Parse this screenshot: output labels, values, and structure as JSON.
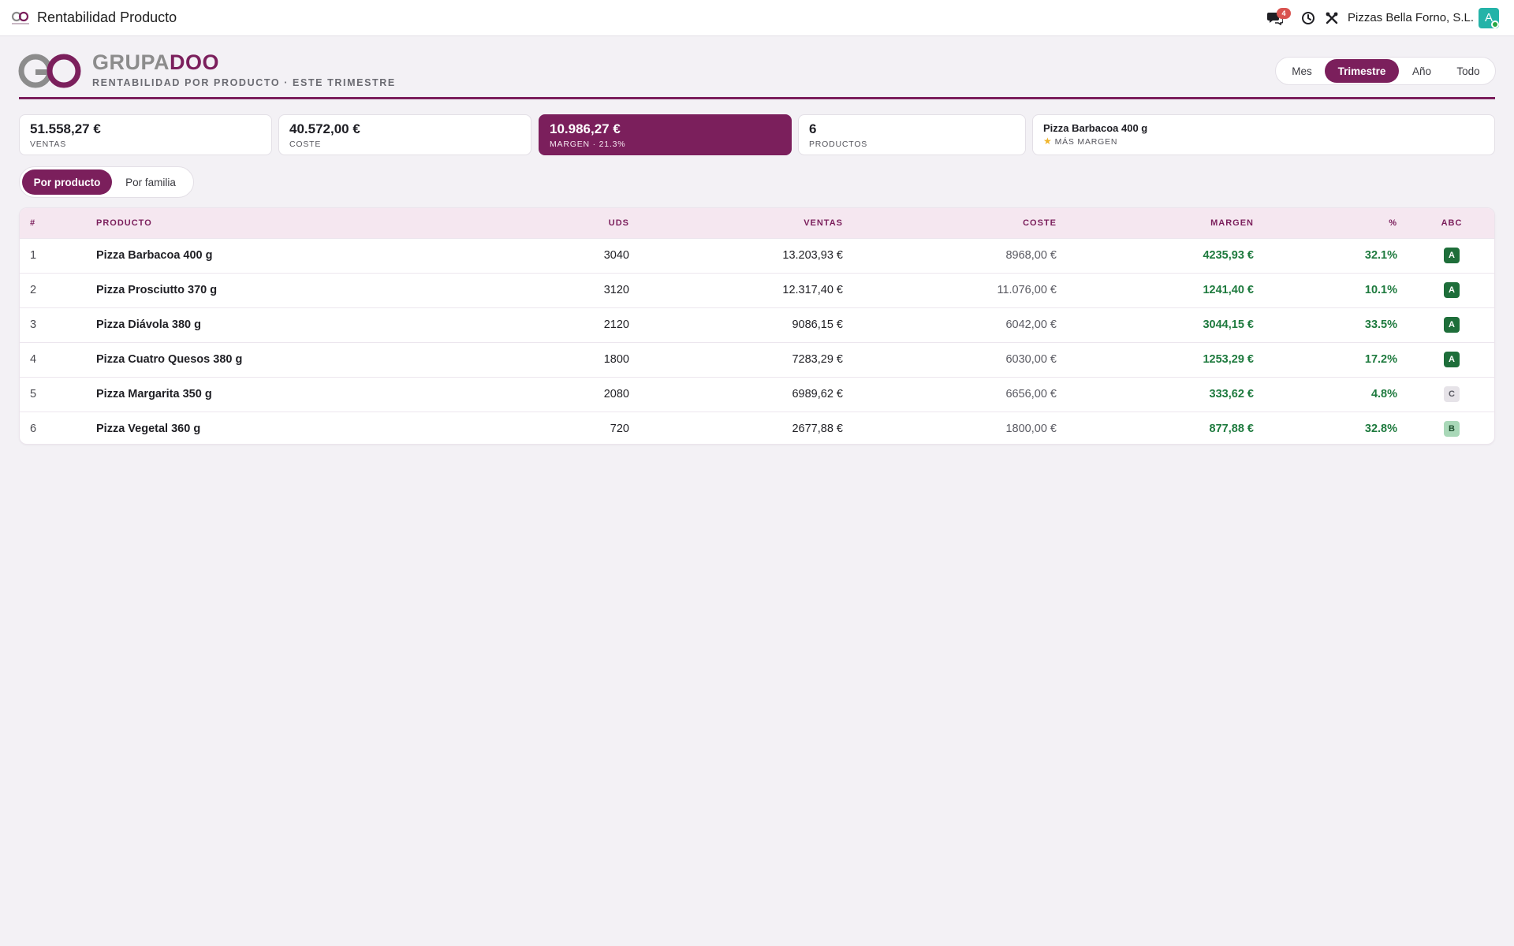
{
  "app": {
    "title": "Rentabilidad Producto",
    "company": "Pizzas Bella Forno, S.L.",
    "notifications_count": "4",
    "avatar_letter": "A"
  },
  "brand": {
    "name_part1": "GRUPA",
    "name_part2": "DOO",
    "subtitle": "RENTABILIDAD POR PRODUCTO · ESTE TRIMESTRE"
  },
  "period_filter": {
    "options": [
      "Mes",
      "Trimestre",
      "Año",
      "Todo"
    ],
    "selected": "Trimestre"
  },
  "kpis": {
    "sales": {
      "value": "51.558,27 €",
      "label": "VENTAS"
    },
    "cost": {
      "value": "40.572,00 €",
      "label": "COSTE"
    },
    "margin": {
      "value": "10.986,27 €",
      "label": "MARGEN · 21.3%"
    },
    "products": {
      "value": "6",
      "label": "PRODUCTOS"
    },
    "top_product": {
      "value": "Pizza Barbacoa 400 g",
      "label": "MÁS MARGEN",
      "icon": "star-icon"
    }
  },
  "view_toggle": {
    "options": [
      "Por producto",
      "Por familia"
    ],
    "selected": "Por producto"
  },
  "table": {
    "headers": {
      "idx": "#",
      "product": "PRODUCTO",
      "units": "UDS",
      "sales": "VENTAS",
      "cost": "COSTE",
      "margin": "MARGEN",
      "pct": "%",
      "abc": "ABC"
    },
    "rows": [
      {
        "idx": "1",
        "product": "Pizza Barbacoa 400 g",
        "units": "3040",
        "sales": "13.203,93 €",
        "cost": "8968,00 €",
        "margin": "4235,93 €",
        "pct": "32.1%",
        "abc": "A"
      },
      {
        "idx": "2",
        "product": "Pizza Prosciutto 370 g",
        "units": "3120",
        "sales": "12.317,40 €",
        "cost": "11.076,00 €",
        "margin": "1241,40 €",
        "pct": "10.1%",
        "abc": "A"
      },
      {
        "idx": "3",
        "product": "Pizza Diávola 380 g",
        "units": "2120",
        "sales": "9086,15 €",
        "cost": "6042,00 €",
        "margin": "3044,15 €",
        "pct": "33.5%",
        "abc": "A"
      },
      {
        "idx": "4",
        "product": "Pizza Cuatro Quesos 380 g",
        "units": "1800",
        "sales": "7283,29 €",
        "cost": "6030,00 €",
        "margin": "1253,29 €",
        "pct": "17.2%",
        "abc": "A"
      },
      {
        "idx": "5",
        "product": "Pizza Margarita 350 g",
        "units": "2080",
        "sales": "6989,62 €",
        "cost": "6656,00 €",
        "margin": "333,62 €",
        "pct": "4.8%",
        "abc": "C"
      },
      {
        "idx": "6",
        "product": "Pizza Vegetal 360 g",
        "units": "720",
        "sales": "2677,88 €",
        "cost": "1800,00 €",
        "margin": "877,88 €",
        "pct": "32.8%",
        "abc": "B"
      }
    ]
  },
  "colors": {
    "brand": "#7b1f5c",
    "margin_text": "#1e7a3e",
    "badge_A": "#1e6e3a",
    "badge_B": "#a9d8b8",
    "badge_C": "#e6e3e8",
    "avatar": "#24b3a8",
    "notification": "#d9534f"
  }
}
